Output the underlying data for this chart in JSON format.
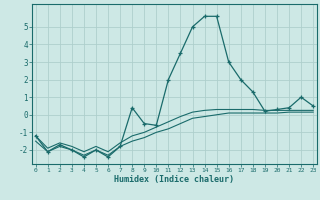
{
  "xlabel": "Humidex (Indice chaleur)",
  "background_color": "#cde8e5",
  "line_color": "#1a6b6b",
  "grid_color": "#aecfcc",
  "x_values": [
    0,
    1,
    2,
    3,
    4,
    5,
    6,
    7,
    8,
    9,
    10,
    11,
    12,
    13,
    14,
    15,
    16,
    17,
    18,
    19,
    20,
    21,
    22,
    23
  ],
  "y_main": [
    -1.2,
    -2.1,
    -1.7,
    -2.0,
    -2.4,
    -2.0,
    -2.4,
    -1.8,
    0.4,
    -0.5,
    -0.6,
    2.0,
    3.5,
    5.0,
    5.6,
    5.6,
    3.0,
    2.0,
    1.3,
    0.2,
    0.3,
    0.4,
    1.0,
    0.5
  ],
  "y_line2": [
    -1.5,
    -2.1,
    -1.8,
    -2.0,
    -2.3,
    -2.0,
    -2.3,
    -1.8,
    -1.5,
    -1.3,
    -1.0,
    -0.8,
    -0.5,
    -0.2,
    -0.1,
    0.0,
    0.1,
    0.1,
    0.1,
    0.1,
    0.1,
    0.15,
    0.15,
    0.15
  ],
  "y_line3": [
    -1.2,
    -1.9,
    -1.6,
    -1.8,
    -2.1,
    -1.8,
    -2.1,
    -1.6,
    -1.2,
    -1.0,
    -0.7,
    -0.4,
    -0.1,
    0.15,
    0.25,
    0.3,
    0.3,
    0.3,
    0.3,
    0.25,
    0.25,
    0.25,
    0.25,
    0.25
  ],
  "ylim": [
    -2.8,
    6.3
  ],
  "yticks": [
    -2,
    -1,
    0,
    1,
    2,
    3,
    4,
    5
  ],
  "xlim": [
    -0.3,
    23.3
  ]
}
